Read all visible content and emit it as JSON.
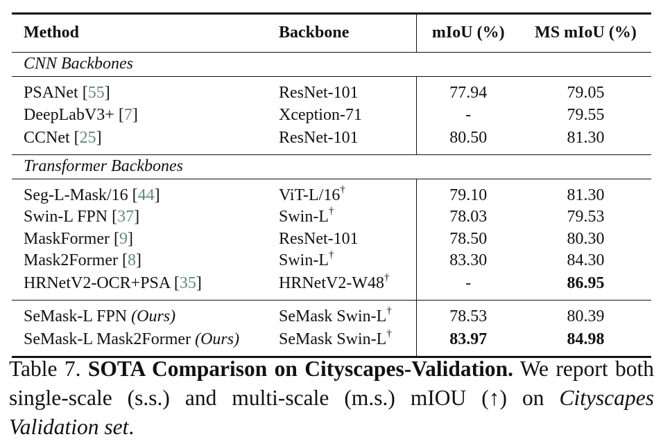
{
  "table": {
    "headers": {
      "method": "Method",
      "backbone": "Backbone",
      "miou": "mIoU (%)",
      "ms_miou": "MS mIoU (%)"
    },
    "sections": [
      {
        "title": "CNN Backbones",
        "rows": [
          {
            "method": "PSANet",
            "cite": "55",
            "backbone": "ResNet-101",
            "dagger": "",
            "miou": "77.94",
            "ms_miou": "79.05"
          },
          {
            "method": "DeepLabV3+",
            "cite": "7",
            "backbone": "Xception-71",
            "dagger": "",
            "miou": "-",
            "ms_miou": "79.55"
          },
          {
            "method": "CCNet",
            "cite": "25",
            "backbone": "ResNet-101",
            "dagger": "",
            "miou": "80.50",
            "ms_miou": "81.30"
          }
        ]
      },
      {
        "title": "Transformer Backbones",
        "rows": [
          {
            "method": "Seg-L-Mask/16",
            "cite": "44",
            "backbone": "ViT-L/16",
            "dagger": "†",
            "miou": "79.10",
            "ms_miou": "81.30"
          },
          {
            "method": "Swin-L FPN",
            "cite": "37",
            "backbone": "Swin-L",
            "dagger": "†",
            "miou": "78.03",
            "ms_miou": "79.53"
          },
          {
            "method": "MaskFormer",
            "cite": "9",
            "backbone": "ResNet-101",
            "dagger": "",
            "miou": "78.50",
            "ms_miou": "80.30"
          },
          {
            "method": "Mask2Former",
            "cite": "8",
            "backbone": "Swin-L",
            "dagger": "†",
            "miou": "83.30",
            "ms_miou": "84.30"
          },
          {
            "method": "HRNetV2-OCR+PSA",
            "cite": "35",
            "backbone": "HRNetV2-W48",
            "dagger": "†",
            "miou": "-",
            "ms_miou": "86.95"
          }
        ]
      }
    ],
    "ours": [
      {
        "method": "SeMask-L FPN",
        "tag": "(Ours)",
        "backbone": "SeMask Swin-L",
        "dagger": "†",
        "miou": "78.53",
        "ms_miou": "80.39"
      },
      {
        "method": "SeMask-L Mask2Former",
        "tag": "(Ours)",
        "backbone": "SeMask Swin-L",
        "dagger": "†",
        "miou": "83.97",
        "ms_miou": "84.98"
      }
    ]
  },
  "caption": {
    "label": "Table 7.",
    "title": "SOTA Comparison on Cityscapes-Validation.",
    "text": "We report both single-scale (s.s.) and multi-scale (m.s.) mIOU (↑) on",
    "italic": "Cityscapes Validation set",
    "end": "."
  }
}
